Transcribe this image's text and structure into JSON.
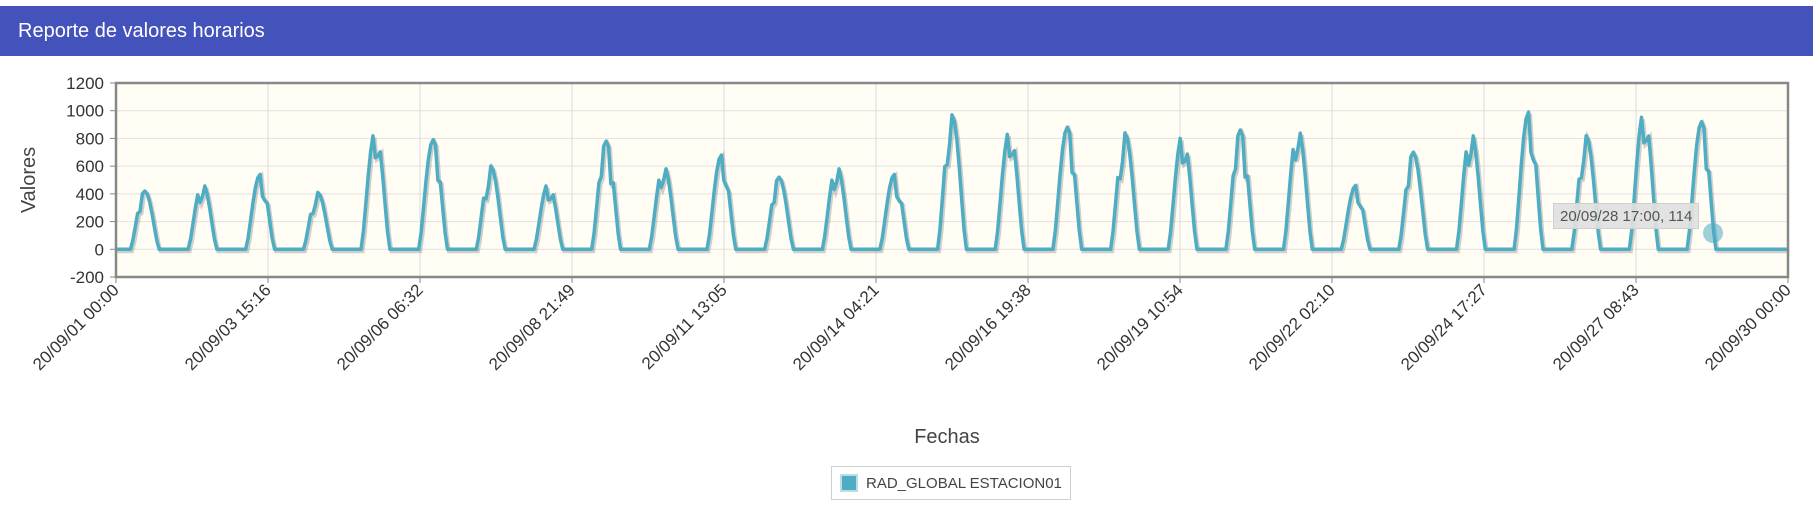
{
  "header": {
    "title": "Reporte de valores horarios"
  },
  "colors": {
    "header_bg": "#4452bb",
    "series": "#4eacc3",
    "plot_bg": "#fffdf4"
  },
  "chart_data": {
    "type": "line",
    "title": "",
    "xlabel": "Fechas",
    "ylabel": "Valores",
    "ylim": [
      -200,
      1200
    ],
    "yticks": [
      "1200",
      "1000",
      "800",
      "600",
      "400",
      "200",
      "0",
      "-200"
    ],
    "xlim": [
      "20/09/01 00:00",
      "20/09/30 00:00"
    ],
    "xticks": [
      "20/09/01 00:00",
      "20/09/03 15:16",
      "20/09/06 06:32",
      "20/09/08 21:49",
      "20/09/11 13:05",
      "20/09/14 04:21",
      "20/09/16 19:38",
      "20/09/19 10:54",
      "20/09/22 02:10",
      "20/09/24 17:27",
      "20/09/27 08:43",
      "20/09/30 00:00"
    ],
    "grid": true,
    "legend_position": "bottom-center",
    "series": [
      {
        "name": "RAD_GLOBAL ESTACION01",
        "daily_peaks": [
          420,
          480,
          540,
          410,
          860,
          790,
          600,
          480,
          780,
          610,
          680,
          520,
          610,
          540,
          970,
          870,
          880,
          840,
          840,
          860,
          880,
          460,
          700,
          860,
          990,
          820,
          1000,
          920,
          0
        ],
        "tooltip_point": {
          "x": "20/09/28 17:00",
          "y": 114
        }
      }
    ],
    "tooltip": "20/09/28 17:00, 114"
  }
}
